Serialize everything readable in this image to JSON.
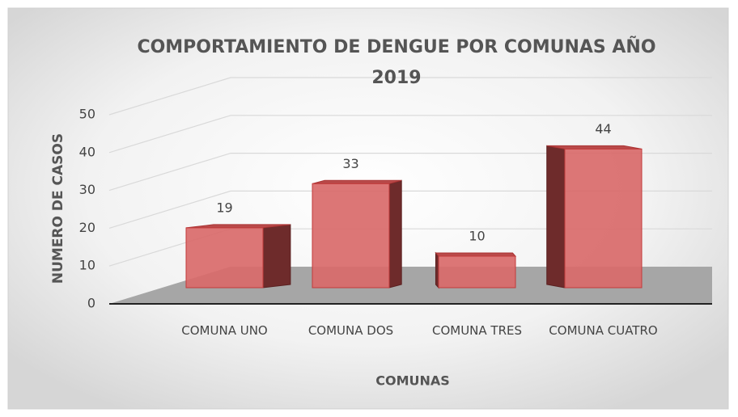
{
  "chart_data": {
    "type": "bar3d",
    "title": "COMPORTAMIENTO DE DENGUE POR COMUNAS AÑO 2019",
    "x_label": "COMUNAS",
    "y_label": "NUMERO DE CASOS",
    "categories": [
      "COMUNA UNO",
      "COMUNA DOS",
      "COMUNA TRES",
      "COMUNA CUATRO"
    ],
    "values": [
      19,
      33,
      10,
      44
    ],
    "color": "#d96a6a",
    "ylim": [
      0,
      50
    ],
    "yticks": [
      0,
      10,
      20,
      30,
      40,
      50
    ],
    "grid": true
  }
}
